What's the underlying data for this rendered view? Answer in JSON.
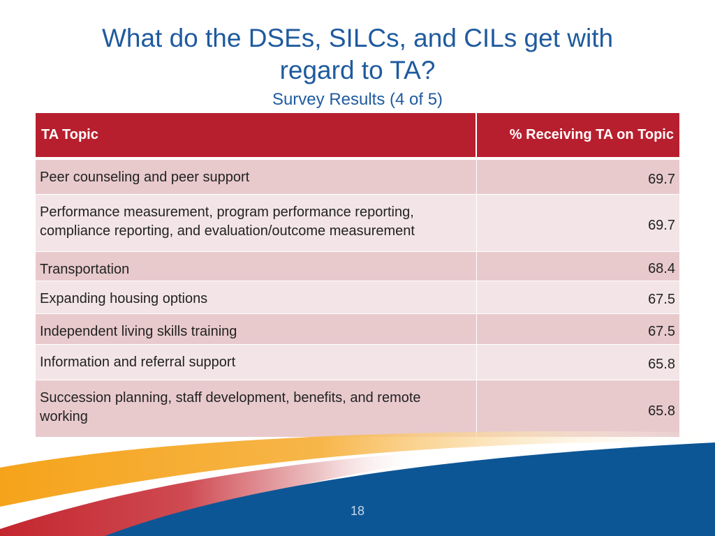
{
  "slide": {
    "title_line1": "What do the DSEs, SILCs, and CILs get with",
    "title_line2": "regard to TA?",
    "subtitle": "Survey Results (4 of 5)",
    "page_number": "18"
  },
  "table": {
    "headers": [
      "TA Topic",
      "% Receiving TA on Topic"
    ],
    "rows": [
      {
        "topic": "Peer counseling and peer support",
        "value": "69.7"
      },
      {
        "topic": "Performance measurement, program performance reporting, compliance reporting, and evaluation/outcome measurement",
        "value": "69.7"
      },
      {
        "topic": "Transportation",
        "value": "68.4"
      },
      {
        "topic": "Expanding housing options",
        "value": "67.5"
      },
      {
        "topic": "Independent living skills training",
        "value": "67.5"
      },
      {
        "topic": "Information and referral support",
        "value": "65.8"
      },
      {
        "topic": "Succession planning, staff development, benefits, and remote working",
        "value": "65.8"
      }
    ]
  },
  "colors": {
    "title": "#1f5a9e",
    "header_bg": "#b81f2e",
    "row_odd": "#e8cacd",
    "row_even": "#f3e5e7",
    "footer_blue": "#0d5696",
    "footer_orange": "#f5a31a",
    "footer_red": "#c4262e"
  }
}
